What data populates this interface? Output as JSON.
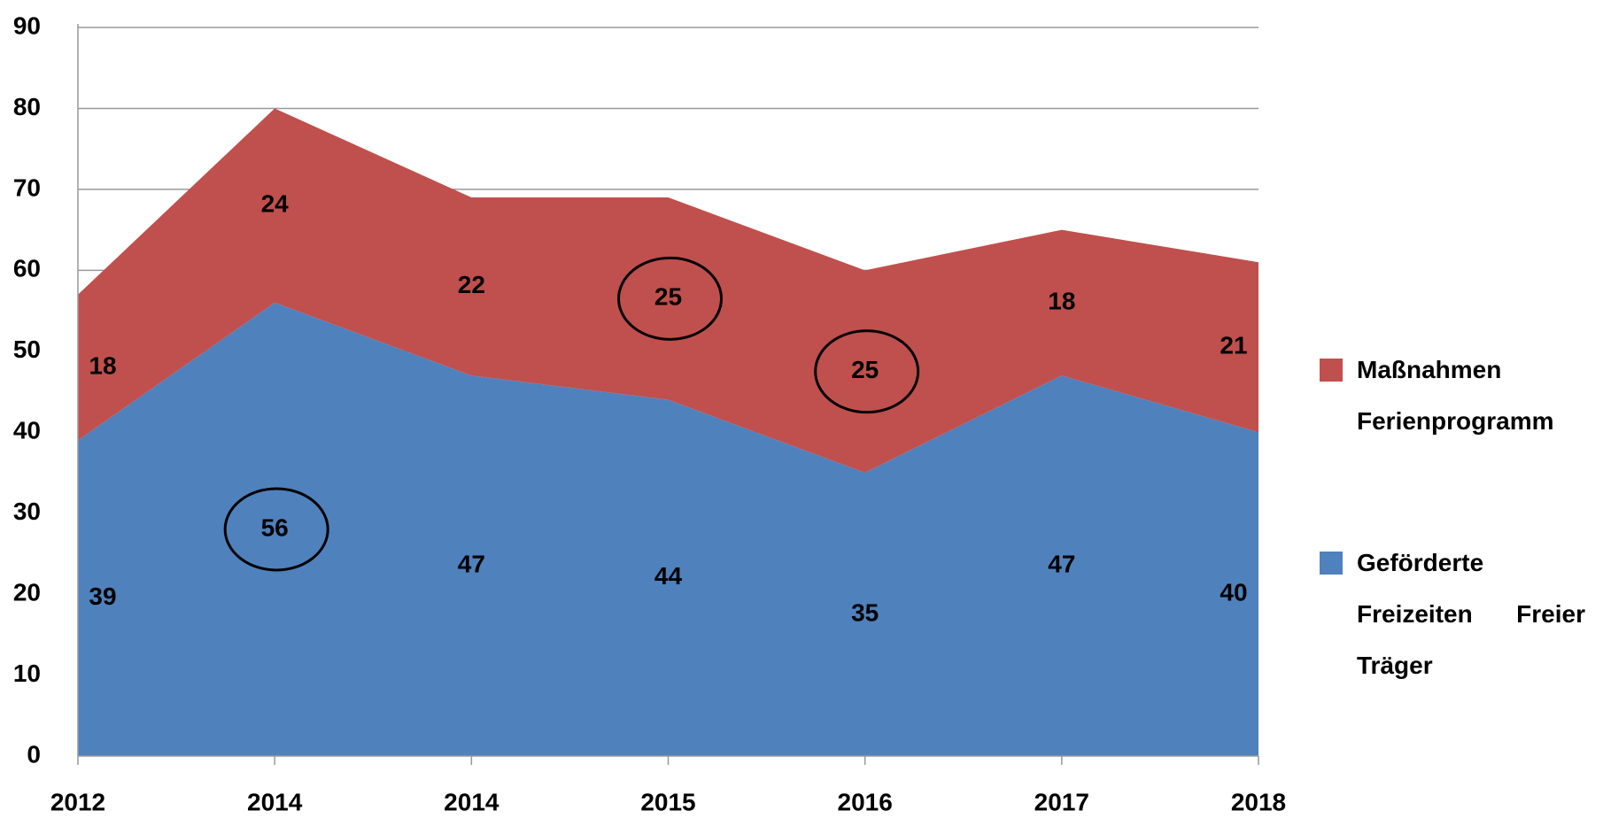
{
  "chart_data": {
    "type": "stacked_area",
    "categories": [
      "2012",
      "2014",
      "2014",
      "2015",
      "2016",
      "2017",
      "2018"
    ],
    "series": [
      {
        "name": "Geförderte Freizeiten Freier Träger",
        "color": "#4f81bd",
        "values": [
          39,
          56,
          47,
          44,
          35,
          47,
          40
        ]
      },
      {
        "name": "Maßnahmen Ferienprogramm",
        "color": "#c0504d",
        "values": [
          18,
          24,
          22,
          25,
          25,
          18,
          21
        ]
      }
    ],
    "ylim": [
      0,
      90
    ],
    "yticks": [
      0,
      10,
      20,
      30,
      40,
      50,
      60,
      70,
      80,
      90
    ],
    "grid": true,
    "legend": "right"
  }
}
